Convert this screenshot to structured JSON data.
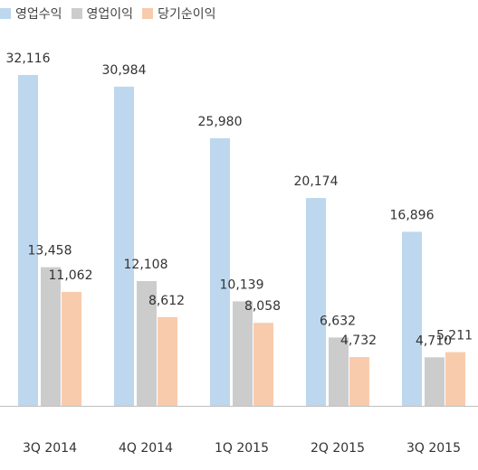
{
  "chart_data": {
    "type": "bar",
    "categories": [
      "3Q 2014",
      "4Q 2014",
      "1Q 2015",
      "2Q 2015",
      "3Q 2015"
    ],
    "series": [
      {
        "name": "영업수익",
        "color": "#bdd7ee",
        "values": [
          32116,
          30984,
          25980,
          20174,
          16896
        ],
        "labels": [
          "32,116",
          "30,984",
          "25,980",
          "20,174",
          "16,896"
        ]
      },
      {
        "name": "영업이익",
        "color": "#cccccc",
        "values": [
          13458,
          12108,
          10139,
          6632,
          4710
        ],
        "labels": [
          "13,458",
          "12,108",
          "10,139",
          "6,632",
          "4,710"
        ]
      },
      {
        "name": "당기순이익",
        "color": "#f8cbad",
        "values": [
          11062,
          8612,
          8058,
          4732,
          5211
        ],
        "labels": [
          "11,062",
          "8,612",
          "8,058",
          "4,732",
          "5,211"
        ]
      }
    ],
    "ylim": [
      0,
      36500
    ],
    "grid": false,
    "legend": "top-left"
  }
}
